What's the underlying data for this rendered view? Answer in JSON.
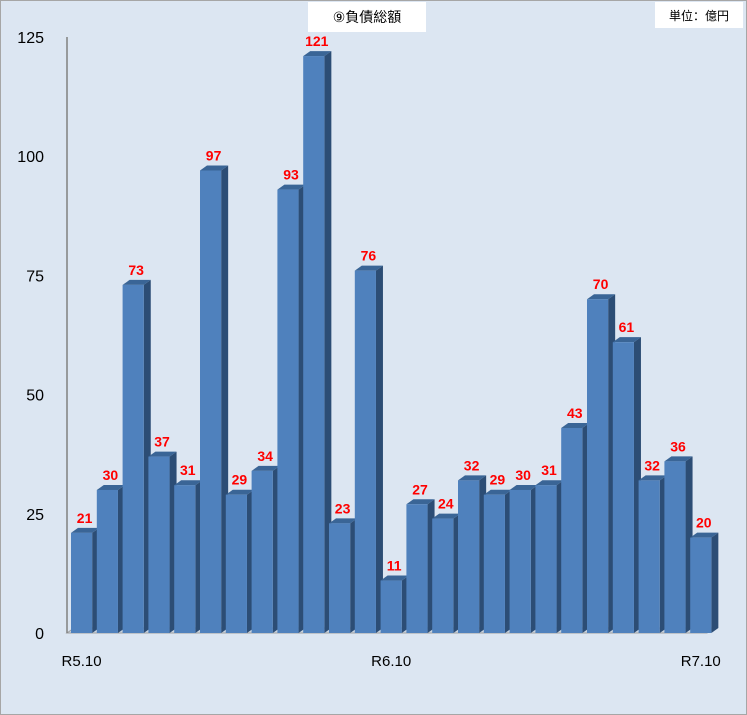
{
  "chart_data": {
    "type": "bar",
    "title": "⑨負債総額",
    "unit": "単位：億円",
    "categories": [
      "R5.10",
      "",
      "",
      "",
      "",
      "",
      "",
      "",
      "",
      "",
      "",
      "",
      "R6.10",
      "",
      "",
      "",
      "",
      "",
      "",
      "",
      "",
      "",
      "",
      "",
      "R7.10"
    ],
    "values": [
      21,
      30,
      73,
      37,
      31,
      97,
      29,
      34,
      93,
      121,
      23,
      76,
      11,
      27,
      24,
      32,
      29,
      30,
      31,
      43,
      70,
      61,
      32,
      36,
      20
    ],
    "yticks": [
      0,
      25,
      50,
      75,
      100,
      125
    ],
    "ylim": [
      0,
      125
    ],
    "grid": false,
    "legend": "none",
    "colors": {
      "bar_front": "#4f81bd",
      "bar_side": "#2c4d75",
      "bar_top": "#3a6596",
      "label": "#ff0000",
      "background": "#dce6f2"
    }
  }
}
